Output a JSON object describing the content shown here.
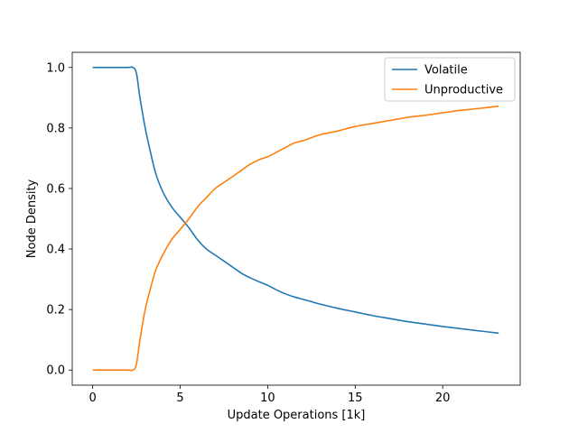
{
  "chart_data": {
    "type": "line",
    "title": "",
    "xlabel": "Update Operations [1k]",
    "ylabel": "Node Density",
    "xlim": [
      -1.17,
      24.43
    ],
    "ylim": [
      -0.05,
      1.05
    ],
    "xticks": [
      0,
      5,
      10,
      15,
      20
    ],
    "yticks": [
      0.0,
      0.2,
      0.4,
      0.6,
      0.8,
      1.0
    ],
    "xtick_labels": [
      "0",
      "5",
      "10",
      "15",
      "20"
    ],
    "ytick_labels": [
      "0.0",
      "0.2",
      "0.4",
      "0.6",
      "0.8",
      "1.0"
    ],
    "grid": false,
    "legend_position": "upper-right",
    "series": [
      {
        "name": "Volatile",
        "color": "#1f77b4",
        "x": [
          0,
          1,
          2,
          2.3,
          2.5,
          2.7,
          3.0,
          3.3,
          3.6,
          4.0,
          4.5,
          5.0,
          5.5,
          6.0,
          6.5,
          7.0,
          7.5,
          8.0,
          8.5,
          9.0,
          9.5,
          10.0,
          10.5,
          11.0,
          11.5,
          12.0,
          12.5,
          13.0,
          14.0,
          15.0,
          16.0,
          17.0,
          18.0,
          19.0,
          20.0,
          21.0,
          22.0,
          23.2
        ],
        "y": [
          1.0,
          1.0,
          1.0,
          1.0,
          0.98,
          0.9,
          0.8,
          0.72,
          0.65,
          0.59,
          0.54,
          0.505,
          0.47,
          0.43,
          0.4,
          0.38,
          0.36,
          0.34,
          0.32,
          0.305,
          0.292,
          0.28,
          0.265,
          0.252,
          0.242,
          0.234,
          0.226,
          0.218,
          0.204,
          0.192,
          0.18,
          0.17,
          0.16,
          0.152,
          0.144,
          0.137,
          0.13,
          0.122
        ]
      },
      {
        "name": "Unproductive",
        "color": "#ff7f0e",
        "x": [
          0,
          1,
          2,
          2.3,
          2.5,
          2.7,
          3.0,
          3.3,
          3.6,
          4.0,
          4.5,
          5.0,
          5.5,
          6.0,
          6.5,
          7.0,
          7.5,
          8.0,
          8.5,
          9.0,
          9.5,
          10.0,
          10.5,
          11.0,
          11.5,
          12.0,
          12.5,
          13.0,
          14.0,
          15.0,
          16.0,
          17.0,
          18.0,
          19.0,
          20.0,
          21.0,
          22.0,
          23.2
        ],
        "y": [
          0.0,
          0.0,
          0.0,
          0.0,
          0.02,
          0.1,
          0.2,
          0.27,
          0.33,
          0.38,
          0.43,
          0.465,
          0.5,
          0.54,
          0.57,
          0.6,
          0.62,
          0.64,
          0.66,
          0.68,
          0.695,
          0.705,
          0.72,
          0.735,
          0.75,
          0.758,
          0.768,
          0.778,
          0.79,
          0.805,
          0.815,
          0.825,
          0.835,
          0.842,
          0.85,
          0.858,
          0.864,
          0.872
        ]
      }
    ]
  }
}
